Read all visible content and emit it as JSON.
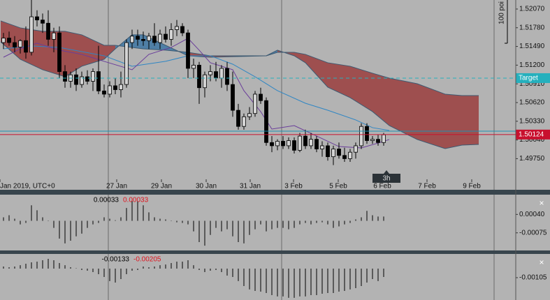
{
  "chart_data": [
    {
      "type": "candlestick",
      "scale_label": "100 poi",
      "timeframe": "3h",
      "xlim": [
        -0.625,
        91.625
      ],
      "xticks": [
        {
          "value": -0.625,
          "label": "Jan 2019, UTC+0"
        },
        {
          "value": 20.25,
          "label": "27 Jan"
        },
        {
          "value": 28.25,
          "label": "29 Jan"
        },
        {
          "value": 36.25,
          "label": "30 Jan"
        },
        {
          "value": 44.125,
          "label": "31 Jan"
        },
        {
          "value": 51.875,
          "label": "3 Feb"
        },
        {
          "value": 59.875,
          "label": "5 Feb"
        },
        {
          "value": 67.75,
          "label": "6 Feb"
        },
        {
          "value": 75.75,
          "label": "7 Feb"
        },
        {
          "value": 83.75,
          "label": "9 Feb"
        }
      ],
      "ylim": [
        1.4943,
        1.5221
      ],
      "yticks": [
        {
          "value": 1.5207,
          "label": "1.52070"
        },
        {
          "value": 1.5178,
          "label": "1.51780"
        },
        {
          "value": 1.5149,
          "label": "1.51490"
        },
        {
          "value": 1.512,
          "label": "1.51200"
        },
        {
          "value": 1.5091,
          "label": "1.50910"
        },
        {
          "value": 1.5062,
          "label": "1.50620"
        },
        {
          "value": 1.5033,
          "label": "1.50330"
        },
        {
          "value": 1.5004,
          "label": "1.50040"
        },
        {
          "value": 1.4975,
          "label": "1.49750"
        }
      ],
      "bull_color": "#d4d4d4",
      "bear_color": "#000000",
      "candles": {
        "x": [
          0,
          1,
          2,
          3,
          4,
          5,
          6,
          7,
          8,
          9,
          10,
          11,
          12,
          13,
          14,
          15,
          16,
          17,
          18,
          19,
          20,
          21,
          22,
          23,
          24,
          25,
          26,
          27,
          28,
          29,
          30,
          31,
          32,
          33,
          34,
          35,
          36,
          37,
          38,
          39,
          40,
          41,
          42,
          43,
          44,
          45,
          46,
          47,
          48,
          49,
          50,
          51,
          52,
          53,
          54,
          55,
          56,
          57,
          58,
          59,
          60,
          61,
          62,
          63,
          64,
          65,
          66,
          67,
          68
        ],
        "open": [
          1.5155,
          1.5162,
          1.5155,
          1.5148,
          1.5158,
          1.514,
          1.5195,
          1.519,
          1.5185,
          1.516,
          1.517,
          1.511,
          1.5095,
          1.5105,
          1.509,
          1.5102,
          1.5095,
          1.511,
          1.508,
          1.5075,
          1.5088,
          1.5082,
          1.509,
          1.5155,
          1.5165,
          1.516,
          1.5158,
          1.5165,
          1.5155,
          1.5168,
          1.516,
          1.5175,
          1.518,
          1.517,
          1.5115,
          1.512,
          1.5085,
          1.5105,
          1.511,
          1.51,
          1.5115,
          1.509,
          1.505,
          1.5025,
          1.504,
          1.5045,
          1.5075,
          1.5065,
          1.5,
          1.4995,
          1.5002,
          1.4995,
          1.5003,
          1.4988,
          1.501,
          1.4995,
          1.5005,
          1.499,
          1.4995,
          1.4978,
          1.499,
          1.498,
          1.4975,
          1.4985,
          1.4995,
          1.5025,
          1.5003,
          1.5005,
          1.5
        ],
        "high": [
          1.517,
          1.5172,
          1.5165,
          1.516,
          1.518,
          1.5221,
          1.5205,
          1.52,
          1.5205,
          1.5178,
          1.518,
          1.512,
          1.511,
          1.5115,
          1.511,
          1.5112,
          1.5115,
          1.515,
          1.509,
          1.5095,
          1.51,
          1.511,
          1.516,
          1.5175,
          1.5175,
          1.5172,
          1.517,
          1.5185,
          1.5175,
          1.518,
          1.5185,
          1.519,
          1.5185,
          1.5175,
          1.513,
          1.5125,
          1.511,
          1.512,
          1.5125,
          1.512,
          1.5125,
          1.511,
          1.506,
          1.5045,
          1.5055,
          1.508,
          1.5085,
          1.507,
          1.501,
          1.5005,
          1.501,
          1.5008,
          1.5008,
          1.5015,
          1.502,
          1.5015,
          1.501,
          1.5002,
          1.5,
          1.4995,
          1.5,
          1.4992,
          1.499,
          1.5,
          1.503,
          1.503,
          1.501,
          1.5012,
          1.5015
        ],
        "low": [
          1.5145,
          1.515,
          1.514,
          1.5138,
          1.513,
          1.5135,
          1.518,
          1.517,
          1.515,
          1.514,
          1.51,
          1.5085,
          1.5085,
          1.508,
          1.5085,
          1.509,
          1.508,
          1.5075,
          1.507,
          1.507,
          1.5075,
          1.507,
          1.5085,
          1.5145,
          1.515,
          1.515,
          1.5145,
          1.515,
          1.5145,
          1.5155,
          1.515,
          1.5165,
          1.5165,
          1.51,
          1.51,
          1.506,
          1.507,
          1.5095,
          1.5095,
          1.5085,
          1.508,
          1.504,
          1.502,
          1.502,
          1.5035,
          1.504,
          1.506,
          1.4995,
          1.4985,
          1.4988,
          1.499,
          1.499,
          1.4983,
          1.4985,
          1.499,
          1.499,
          1.4985,
          1.4978,
          1.4972,
          1.4965,
          1.4975,
          1.497,
          1.497,
          1.4975,
          1.499,
          1.4998,
          1.4998,
          1.4995,
          1.4995
        ],
        "close": [
          1.5162,
          1.5155,
          1.5148,
          1.5158,
          1.514,
          1.5195,
          1.519,
          1.5185,
          1.516,
          1.517,
          1.511,
          1.5095,
          1.5105,
          1.509,
          1.5102,
          1.5095,
          1.511,
          1.508,
          1.5075,
          1.5088,
          1.5082,
          1.509,
          1.5155,
          1.5165,
          1.516,
          1.5158,
          1.5165,
          1.5155,
          1.5168,
          1.516,
          1.5175,
          1.518,
          1.517,
          1.5115,
          1.512,
          1.5085,
          1.5105,
          1.511,
          1.51,
          1.5115,
          1.509,
          1.505,
          1.5025,
          1.504,
          1.5045,
          1.5075,
          1.5065,
          1.5,
          1.4995,
          1.5002,
          1.4995,
          1.5003,
          1.4988,
          1.501,
          1.4995,
          1.5005,
          1.499,
          1.4995,
          1.4978,
          1.499,
          1.498,
          1.4975,
          1.4985,
          1.4995,
          1.5025,
          1.5003,
          1.5005,
          1.5,
          1.5012
        ]
      },
      "cloud": {
        "x": [
          -0.5,
          3,
          7,
          11,
          14,
          18,
          20,
          23,
          25,
          29,
          33,
          37,
          42,
          47,
          49,
          52,
          54,
          58,
          62,
          66,
          69,
          74,
          79,
          82,
          85
        ],
        "span_a": [
          1.51561,
          1.51291,
          1.51129,
          1.5102,
          1.51183,
          1.51291,
          1.51453,
          1.5167,
          1.5167,
          1.51507,
          1.51345,
          1.51323,
          1.51334,
          1.51345,
          1.51432,
          1.51345,
          1.51237,
          1.50858,
          1.50696,
          1.5048,
          1.50263,
          1.50047,
          1.49906,
          1.4996,
          1.49971
        ],
        "span_b": [
          1.51886,
          1.51778,
          1.51724,
          1.51724,
          1.5167,
          1.51507,
          1.51507,
          1.51475,
          1.51453,
          1.51432,
          1.51399,
          1.51345,
          1.51345,
          1.51345,
          1.51399,
          1.51399,
          1.51367,
          1.51237,
          1.51183,
          1.51075,
          1.50999,
          1.50912,
          1.5075,
          1.50728,
          1.50728
        ],
        "bear_color": "#9e4f4f",
        "bull_color": "#4f7fa6",
        "edge_color": "#3d5a72"
      },
      "lines": [
        {
          "color": "#2f86c4",
          "x": [
            0,
            5,
            10,
            18,
            23,
            29,
            33,
            37,
            41,
            45,
            49,
            54,
            58,
            63,
            66,
            69
          ],
          "values": [
            1.51453,
            1.51497,
            1.51475,
            1.51345,
            1.51183,
            1.51259,
            1.51345,
            1.51345,
            1.51215,
            1.5102,
            1.50804,
            1.50609,
            1.50501,
            1.5035,
            1.50231,
            1.50187
          ]
        },
        {
          "color": "#6a3d9a",
          "x": [
            0,
            3,
            6,
            10,
            14,
            18,
            23,
            26,
            30,
            33,
            35,
            37,
            41,
            43,
            46,
            48,
            52,
            56,
            60,
            64,
            67,
            69
          ],
          "values": [
            1.51323,
            1.51453,
            1.5154,
            1.51432,
            1.51367,
            1.51259,
            1.51129,
            1.51367,
            1.51475,
            1.51616,
            1.51432,
            1.51237,
            1.51129,
            1.50804,
            1.50479,
            1.50209,
            1.50263,
            1.50101,
            1.49938,
            1.49917,
            1.49992,
            1.50047
          ]
        }
      ],
      "hlines": [
        {
          "name": "Target",
          "value": 1.50999,
          "color": "#25b0bd",
          "dashed": true
        },
        {
          "value": 1.50177,
          "color": "#1d8fb3",
          "dashed": false
        },
        {
          "value": 1.50124,
          "color": "#c8102e",
          "dashed": false,
          "show_value": true
        }
      ]
    },
    {
      "type": "bar",
      "close_button": "×",
      "color": "#000000",
      "readouts": [
        {
          "value": 0.00033,
          "color": "#000000"
        },
        {
          "value": 0.00033,
          "color": "#e0141e"
        }
      ],
      "xlim": [
        -0.625,
        91.625
      ],
      "ylim": [
        -0.00185,
        0.00159
      ],
      "yticks": [
        {
          "value": 0.0004,
          "label": "0.00040"
        },
        {
          "value": -0.00075,
          "label": "-0.00075"
        }
      ],
      "x": [
        0,
        1,
        2,
        3,
        4,
        5,
        6,
        7,
        8,
        9,
        10,
        11,
        12,
        13,
        14,
        15,
        16,
        17,
        18,
        19,
        20,
        21,
        22,
        23,
        24,
        25,
        26,
        27,
        28,
        29,
        30,
        31,
        32,
        33,
        34,
        35,
        36,
        37,
        38,
        39,
        40,
        41,
        42,
        43,
        44,
        45,
        46,
        47,
        48,
        49,
        50,
        51,
        52,
        53,
        54,
        55,
        56,
        57,
        58,
        59,
        60,
        61,
        62,
        63,
        64,
        65,
        66,
        67,
        68
      ],
      "values": [
        0.00022,
        0.00035,
        0.00013,
        -0.00022,
        -0.00013,
        0.00097,
        0.00066,
        0.00022,
        0,
        -0.00044,
        -0.00111,
        -0.00141,
        -0.00124,
        -0.00097,
        -0.0008,
        -0.00044,
        -0.00022,
        -0.00013,
        0.00022,
        0.00013,
        4e-05,
        0.00022,
        0.0008,
        0.00124,
        0.00124,
        0.00097,
        0.00053,
        0.00022,
        0.00013,
        9e-05,
        0,
        -9e-05,
        -0.00013,
        -0.00022,
        -0.00066,
        -0.00133,
        -0.00155,
        -0.00088,
        -0.00044,
        -0.00066,
        -0.00053,
        -0.00097,
        -0.00133,
        -0.00141,
        -0.00088,
        -0.00053,
        -0.00022,
        -0.00066,
        -0.00053,
        -0.00044,
        -0.00044,
        -0.00053,
        -0.00044,
        -0.00022,
        -0.00013,
        -0.00022,
        -0.00013,
        -9e-05,
        -0.00022,
        -0.00044,
        -0.00035,
        -0.00022,
        -0.00013,
        9e-05,
        0.00022,
        0.00062,
        0.00035,
        0.00027,
        0.00027
      ]
    },
    {
      "type": "bar",
      "close_button": "×",
      "color": "#000000",
      "readouts": [
        {
          "value": -0.00133,
          "color": "#000000"
        },
        {
          "value": -0.00205,
          "color": "#e0141e"
        }
      ],
      "xlim": [
        -0.625,
        91.625
      ],
      "ylim": [
        -0.00364,
        0.00162
      ],
      "yticks": [
        {
          "value": -0.00105,
          "label": "-0.00105"
        }
      ],
      "x": [
        0,
        1,
        2,
        3,
        4,
        5,
        6,
        7,
        8,
        9,
        10,
        11,
        12,
        13,
        14,
        15,
        16,
        17,
        18,
        19,
        20,
        21,
        22,
        23,
        24,
        25,
        26,
        27,
        28,
        29,
        30,
        31,
        32,
        33,
        34,
        35,
        36,
        37,
        38,
        39,
        40,
        41,
        42,
        43,
        44,
        45,
        46,
        47,
        48,
        49,
        50,
        51,
        52,
        53,
        54,
        55,
        56,
        57,
        58,
        59,
        60,
        61,
        62,
        63,
        64,
        65,
        66,
        67,
        68
      ],
      "values": [
        0.00024,
        0.00016,
        0.00024,
        0.0004,
        0.00057,
        0.00073,
        0.00081,
        0.00097,
        0.00113,
        0.00097,
        0.00065,
        0.0004,
        0.00016,
        0,
        -0.00016,
        -0.00024,
        -0.0004,
        -0.00065,
        -0.00097,
        -0.00145,
        -0.00162,
        -0.00121,
        -0.00065,
        -0.00024,
        -0.00016,
        0.00024,
        0.00016,
        0.00024,
        0.0004,
        0.00048,
        0.00065,
        0.00081,
        0.00081,
        0.00097,
        0.0004,
        -0.00016,
        -0.0004,
        -0.00024,
        -0.00016,
        -0.0004,
        -0.00081,
        -0.00097,
        -0.00145,
        -0.00202,
        -0.00242,
        -0.00259,
        -0.00267,
        -0.00283,
        -0.00307,
        -0.00323,
        -0.00323,
        -0.00339,
        -0.00339,
        -0.00323,
        -0.00323,
        -0.00307,
        -0.00307,
        -0.00291,
        -0.00283,
        -0.00283,
        -0.00267,
        -0.00259,
        -0.00242,
        -0.00226,
        -0.00202,
        -0.00162,
        -0.00121,
        -0.00145,
        -0.00097
      ]
    }
  ]
}
